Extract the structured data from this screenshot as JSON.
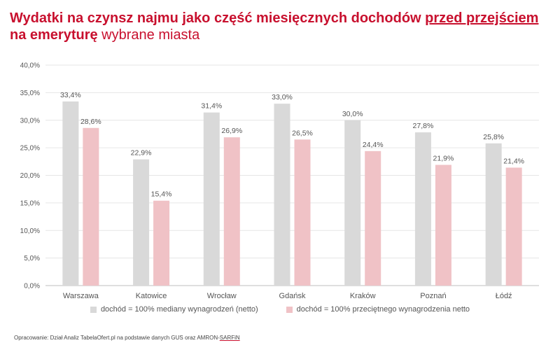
{
  "title": {
    "part1": "Wydatki na czynsz najmu jako część miesięcznych dochodów ",
    "part2_underlined": "przed przejściem",
    "part3": " na emeryturę",
    "subtitle": " wybrane miasta"
  },
  "source": {
    "text": "Opracowanie: Dział Analiz TabelaOfert.pl na podstawie danych GUS oraz AMRON-",
    "underlined": "SARFiN"
  },
  "colors": {
    "series1": "#d9d9d9",
    "series2": "#f0c2c6",
    "grid": "#e6e6e6",
    "axis": "#bfbfbf",
    "title": "#c8102e"
  },
  "chart_data": {
    "type": "bar",
    "categories": [
      "Warszawa",
      "Katowice",
      "Wrocław",
      "Gdańsk",
      "Kraków",
      "Poznań",
      "Łódź"
    ],
    "series": [
      {
        "name": "dochód = 100% mediany wynagrodzeń (netto)",
        "values": [
          33.4,
          22.9,
          31.4,
          33.0,
          30.0,
          27.8,
          25.8
        ],
        "labels": [
          "33,4%",
          "22,9%",
          "31,4%",
          "33,0%",
          "30,0%",
          "27,8%",
          "25,8%"
        ]
      },
      {
        "name": "dochód = 100% przeciętnego wynagrodzenia netto",
        "values": [
          28.6,
          15.4,
          26.9,
          26.5,
          24.4,
          21.9,
          21.4
        ],
        "labels": [
          "28,6%",
          "15,4%",
          "26,9%",
          "26,5%",
          "24,4%",
          "21,9%",
          "21,4%"
        ]
      }
    ],
    "ylim": [
      0,
      40
    ],
    "yticks": [
      "0,0%",
      "5,0%",
      "10,0%",
      "15,0%",
      "20,0%",
      "25,0%",
      "30,0%",
      "35,0%",
      "40,0%"
    ],
    "ytick_values": [
      0,
      5,
      10,
      15,
      20,
      25,
      30,
      35,
      40
    ],
    "grid": true,
    "legend_position": "bottom"
  }
}
